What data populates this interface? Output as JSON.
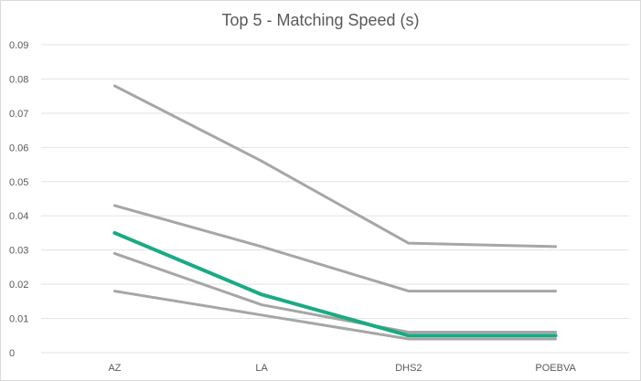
{
  "chart_data": {
    "type": "line",
    "title": "Top 5 - Matching Speed (s)",
    "xlabel": "",
    "ylabel": "",
    "categories": [
      "AZ",
      "LA",
      "DHS2",
      "POEBVA"
    ],
    "ylim": [
      0,
      0.09
    ],
    "yticks": [
      "0",
      "0.01",
      "0.02",
      "0.03",
      "0.04",
      "0.05",
      "0.06",
      "0.07",
      "0.08",
      "0.09"
    ],
    "ytick_values": [
      0,
      0.01,
      0.02,
      0.03,
      0.04,
      0.05,
      0.06,
      0.07,
      0.08,
      0.09
    ],
    "grid": true,
    "legend": "none",
    "series": [
      {
        "name": "series-1",
        "values": [
          0.078,
          0.056,
          0.032,
          0.031
        ],
        "color": "#a6a6a6",
        "highlight": false
      },
      {
        "name": "series-2",
        "values": [
          0.043,
          0.031,
          0.018,
          0.018
        ],
        "color": "#a6a6a6",
        "highlight": false
      },
      {
        "name": "series-3",
        "values": [
          0.029,
          0.014,
          0.006,
          0.006
        ],
        "color": "#a6a6a6",
        "highlight": false
      },
      {
        "name": "series-4",
        "values": [
          0.018,
          0.011,
          0.004,
          0.004
        ],
        "color": "#a6a6a6",
        "highlight": false
      },
      {
        "name": "series-5",
        "values": [
          0.035,
          0.017,
          0.005,
          0.005
        ],
        "color": "#1aaa84",
        "highlight": true
      }
    ]
  }
}
